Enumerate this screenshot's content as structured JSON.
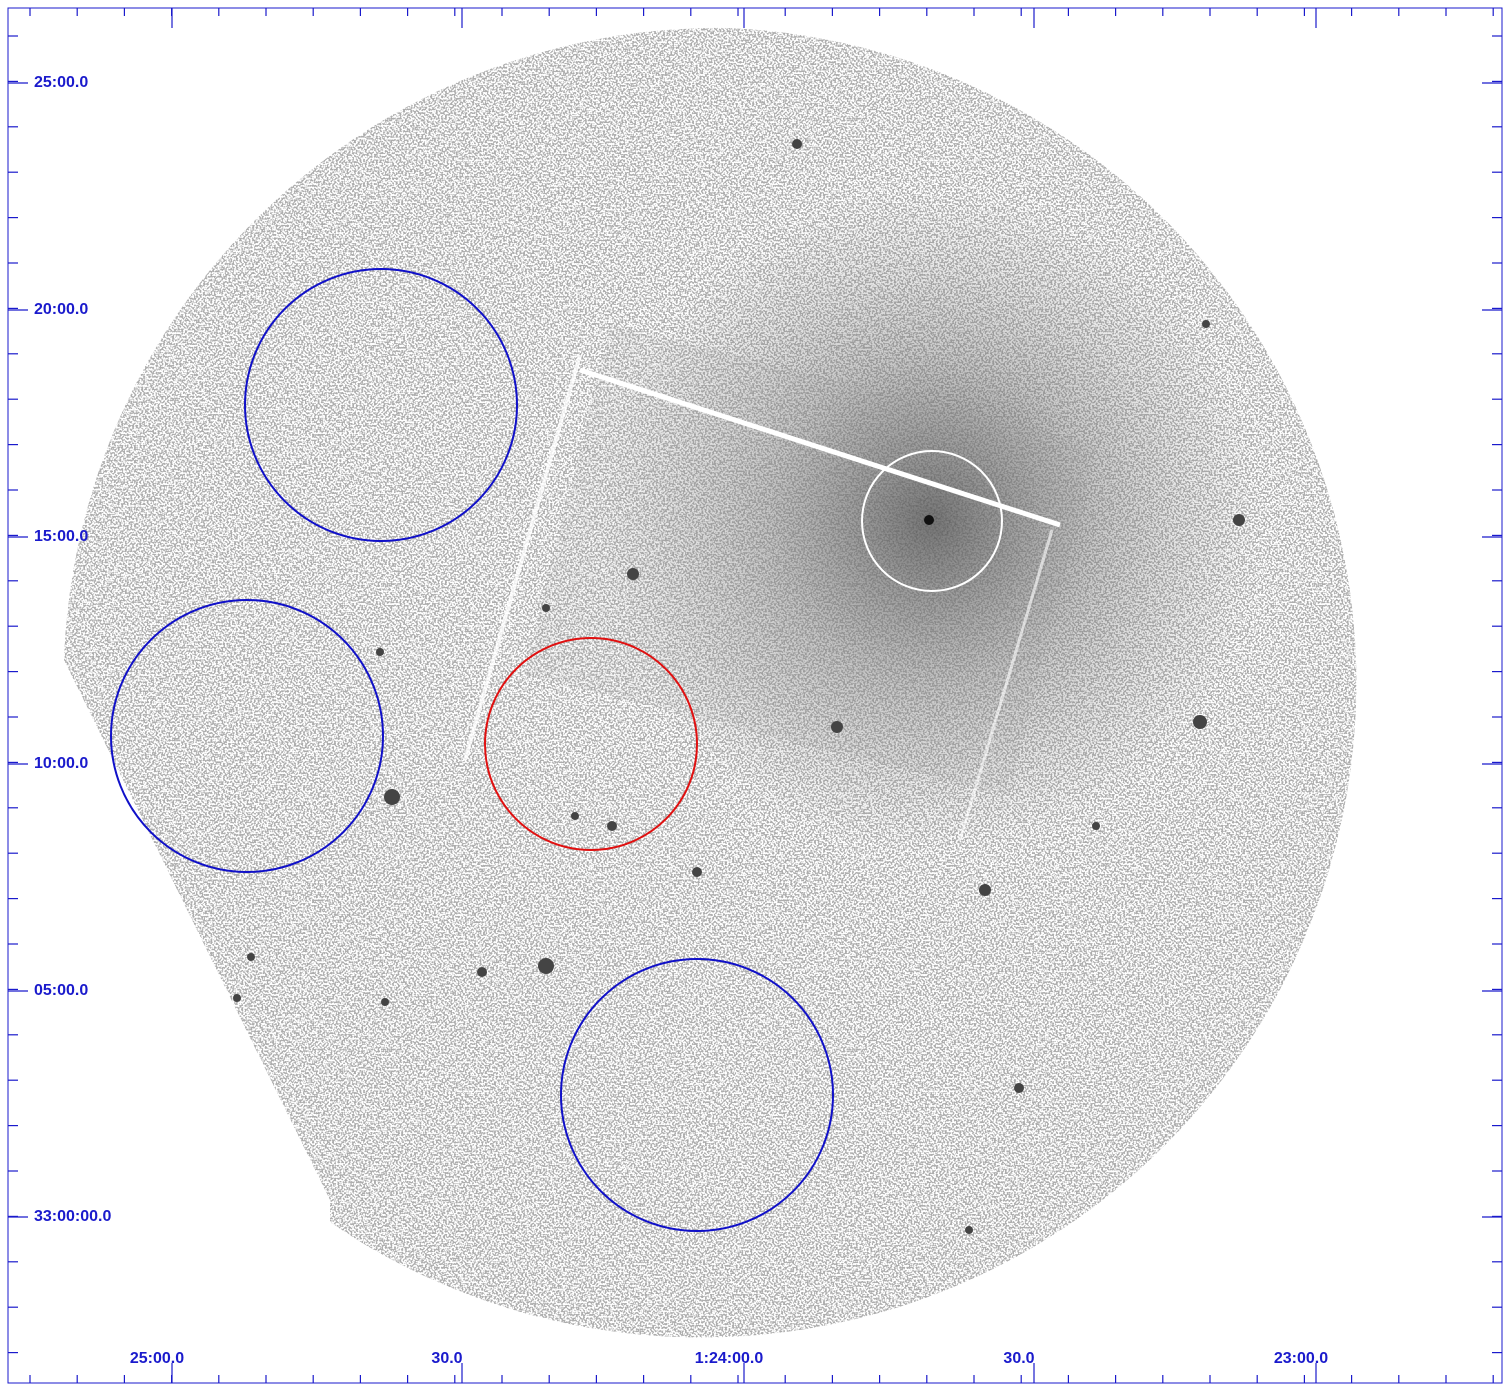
{
  "axes": {
    "y_labels": [
      "25:00.0",
      "20:00.0",
      "15:00.0",
      "10:00.0",
      "05:00.0",
      "33:00:00.0"
    ],
    "x_labels": [
      "25:00.0",
      "30.0",
      "1:24:00.0",
      "30.0",
      "23:00.0"
    ]
  }
}
